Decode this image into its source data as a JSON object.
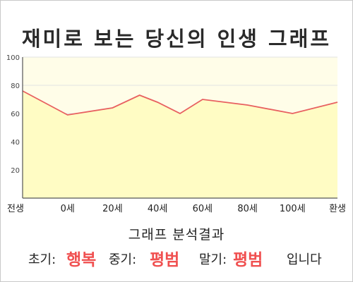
{
  "title": "재미로 보는 당신의 인생 그래프",
  "chart_data": {
    "type": "area",
    "x_categories": [
      "전생",
      "0세",
      "20세",
      "40세",
      "60세",
      "80세",
      "100세",
      "환생"
    ],
    "y_ticks": [
      20,
      40,
      60,
      80,
      100
    ],
    "ylim": [
      0,
      100
    ],
    "grid": true,
    "series": [
      {
        "x": [
          0,
          1,
          2,
          2.6,
          3,
          3.5,
          4,
          5,
          6,
          7
        ],
        "y": [
          76,
          59,
          64,
          73,
          68,
          60,
          70,
          66,
          60,
          68
        ]
      }
    ],
    "colors": {
      "line": "#e86060",
      "fill": "#fffcc4",
      "plot_bg": "#fffde8",
      "grid": "#e2e2e2"
    }
  },
  "summary": {
    "heading": "그래프 분석결과",
    "early_label": "초기:",
    "early_value": "행복",
    "mid_label": "중기:",
    "mid_value": "평범",
    "late_label": "말기:",
    "late_value": "평범",
    "ending": "입니다",
    "value_color": "#f05050"
  }
}
